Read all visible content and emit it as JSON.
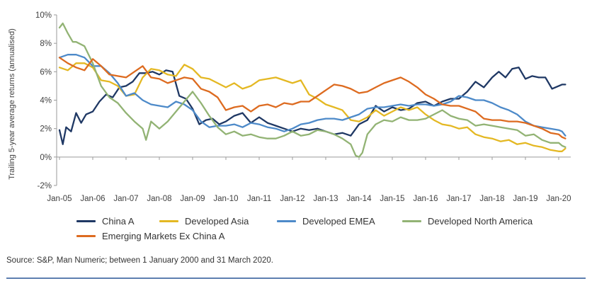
{
  "chart_data": {
    "type": "line",
    "ylabel": "Trailing 5-year average returns (annualised)",
    "xlabel": "",
    "ylim": [
      -2,
      10
    ],
    "yticks": [
      -2,
      0,
      2,
      4,
      6,
      8,
      10
    ],
    "ytick_labels": [
      "-2%",
      "0%",
      "2%",
      "4%",
      "6%",
      "8%",
      "10%"
    ],
    "xlim": [
      2005,
      2020.25
    ],
    "xticks": [
      2005,
      2006,
      2007,
      2008,
      2009,
      2010,
      2011,
      2012,
      2013,
      2014,
      2015,
      2016,
      2017,
      2018,
      2019,
      2020
    ],
    "xtick_labels": [
      "Jan-05",
      "Jan-06",
      "Jan-07",
      "Jan-08",
      "Jan-09",
      "Jan-10",
      "Jan-11",
      "Jan-12",
      "Jan-13",
      "Jan-14",
      "Jan-15",
      "Jan-16",
      "Jan-17",
      "Jan-18",
      "Jan-19",
      "Jan-20"
    ],
    "legend_position": "bottom",
    "series": [
      {
        "name": "China A",
        "color": "#1f3864",
        "x": [
          2005,
          2005.1,
          2005.2,
          2005.35,
          2005.5,
          2005.65,
          2005.8,
          2006,
          2006.2,
          2006.4,
          2006.6,
          2006.8,
          2007,
          2007.2,
          2007.4,
          2007.6,
          2007.8,
          2008,
          2008.2,
          2008.4,
          2008.6,
          2008.8,
          2009,
          2009.2,
          2009.4,
          2009.6,
          2009.8,
          2010,
          2010.25,
          2010.5,
          2010.75,
          2011,
          2011.25,
          2011.5,
          2011.75,
          2012,
          2012.25,
          2012.5,
          2012.75,
          2013,
          2013.25,
          2013.5,
          2013.75,
          2014,
          2014.25,
          2014.5,
          2014.75,
          2015,
          2015.25,
          2015.5,
          2015.75,
          2016,
          2016.25,
          2016.5,
          2016.75,
          2017,
          2017.25,
          2017.5,
          2017.75,
          2018,
          2018.2,
          2018.4,
          2018.6,
          2018.8,
          2019,
          2019.2,
          2019.4,
          2019.6,
          2019.8,
          2020,
          2020.1,
          2020.2
        ],
        "values": [
          1.9,
          0.9,
          2.1,
          1.8,
          3.1,
          2.4,
          3.0,
          3.2,
          3.9,
          4.4,
          4.2,
          4.9,
          5.0,
          5.3,
          5.9,
          5.9,
          6.0,
          5.8,
          6.1,
          6.0,
          4.3,
          4.1,
          3.4,
          2.3,
          2.6,
          2.7,
          2.3,
          2.5,
          2.9,
          3.1,
          2.4,
          2.8,
          2.4,
          2.2,
          2.0,
          1.8,
          2.0,
          1.9,
          2.0,
          1.8,
          1.6,
          1.7,
          1.5,
          2.3,
          2.6,
          3.6,
          3.2,
          3.5,
          3.3,
          3.4,
          3.8,
          3.9,
          3.6,
          3.9,
          4.1,
          4.1,
          4.6,
          5.3,
          4.9,
          5.6,
          6.0,
          5.6,
          6.2,
          6.3,
          5.5,
          5.7,
          5.6,
          5.6,
          4.8,
          5.0,
          5.1,
          5.1
        ]
      },
      {
        "name": "Developed Asia",
        "color": "#e4b823",
        "x": [
          2005,
          2005.25,
          2005.5,
          2005.75,
          2006,
          2006.25,
          2006.5,
          2006.75,
          2007,
          2007.25,
          2007.5,
          2007.75,
          2008,
          2008.25,
          2008.5,
          2008.75,
          2009,
          2009.25,
          2009.5,
          2009.75,
          2010,
          2010.25,
          2010.5,
          2010.75,
          2011,
          2011.25,
          2011.5,
          2011.75,
          2012,
          2012.25,
          2012.5,
          2012.75,
          2013,
          2013.25,
          2013.5,
          2013.75,
          2014,
          2014.25,
          2014.5,
          2014.75,
          2015,
          2015.25,
          2015.5,
          2015.75,
          2016,
          2016.25,
          2016.5,
          2016.75,
          2017,
          2017.25,
          2017.5,
          2017.75,
          2018,
          2018.25,
          2018.5,
          2018.75,
          2019,
          2019.25,
          2019.5,
          2019.75,
          2020,
          2020.1,
          2020.2
        ],
        "values": [
          6.3,
          6.1,
          6.6,
          6.6,
          6.3,
          5.4,
          5.3,
          5.0,
          4.3,
          4.4,
          5.6,
          6.2,
          6.1,
          5.8,
          5.7,
          6.5,
          6.2,
          5.6,
          5.5,
          5.2,
          4.9,
          5.2,
          4.8,
          5.0,
          5.4,
          5.5,
          5.6,
          5.4,
          5.2,
          5.4,
          4.4,
          4.1,
          3.7,
          3.5,
          3.3,
          2.6,
          2.5,
          2.8,
          3.3,
          2.9,
          3.2,
          3.5,
          3.3,
          3.5,
          3.0,
          2.6,
          2.3,
          2.2,
          2.0,
          2.1,
          1.6,
          1.4,
          1.3,
          1.1,
          1.2,
          0.9,
          1.0,
          0.8,
          0.7,
          0.5,
          0.4,
          0.4,
          0.6
        ]
      },
      {
        "name": "Developed EMEA",
        "color": "#4d8ac9",
        "x": [
          2005,
          2005.25,
          2005.5,
          2005.75,
          2006,
          2006.25,
          2006.5,
          2006.75,
          2007,
          2007.25,
          2007.5,
          2007.75,
          2008,
          2008.25,
          2008.5,
          2008.75,
          2009,
          2009.25,
          2009.5,
          2009.75,
          2010,
          2010.25,
          2010.5,
          2010.75,
          2011,
          2011.25,
          2011.5,
          2011.75,
          2012,
          2012.25,
          2012.5,
          2012.75,
          2013,
          2013.25,
          2013.5,
          2013.75,
          2014,
          2014.25,
          2014.5,
          2014.75,
          2015,
          2015.25,
          2015.5,
          2015.75,
          2016,
          2016.25,
          2016.5,
          2016.75,
          2017,
          2017.25,
          2017.5,
          2017.75,
          2018,
          2018.25,
          2018.5,
          2018.75,
          2019,
          2019.25,
          2019.5,
          2019.75,
          2020,
          2020.1,
          2020.2
        ],
        "values": [
          7.0,
          7.2,
          7.2,
          7.0,
          6.4,
          6.4,
          5.9,
          5.2,
          4.3,
          4.5,
          4.0,
          3.7,
          3.6,
          3.5,
          3.9,
          3.7,
          3.3,
          2.5,
          2.1,
          2.2,
          2.2,
          2.3,
          2.1,
          2.4,
          2.3,
          2.1,
          2.0,
          1.8,
          2.0,
          2.3,
          2.4,
          2.6,
          2.7,
          2.7,
          2.6,
          2.8,
          3.0,
          3.4,
          3.5,
          3.5,
          3.6,
          3.7,
          3.6,
          3.7,
          3.7,
          3.6,
          3.7,
          3.9,
          4.3,
          4.2,
          4.0,
          4.0,
          3.8,
          3.5,
          3.3,
          3.0,
          2.5,
          2.2,
          2.1,
          2.0,
          1.9,
          1.8,
          1.5
        ]
      },
      {
        "name": "Developed North America",
        "color": "#92b374",
        "x": [
          2005,
          2005.1,
          2005.25,
          2005.4,
          2005.5,
          2005.75,
          2006,
          2006.25,
          2006.5,
          2006.75,
          2007,
          2007.25,
          2007.5,
          2007.6,
          2007.75,
          2008,
          2008.25,
          2008.5,
          2008.75,
          2009,
          2009.25,
          2009.5,
          2009.75,
          2010,
          2010.25,
          2010.5,
          2010.75,
          2011,
          2011.25,
          2011.5,
          2011.75,
          2012,
          2012.25,
          2012.5,
          2012.75,
          2013,
          2013.25,
          2013.5,
          2013.75,
          2013.9,
          2014,
          2014.1,
          2014.25,
          2014.5,
          2014.75,
          2015,
          2015.25,
          2015.5,
          2015.75,
          2016,
          2016.25,
          2016.5,
          2016.75,
          2017,
          2017.25,
          2017.5,
          2017.75,
          2018,
          2018.25,
          2018.5,
          2018.75,
          2019,
          2019.25,
          2019.5,
          2019.75,
          2020,
          2020.1,
          2020.2
        ],
        "values": [
          9.1,
          9.4,
          8.7,
          8.1,
          8.1,
          7.8,
          6.6,
          5.0,
          4.2,
          3.8,
          3.1,
          2.5,
          2.0,
          1.2,
          2.5,
          2.0,
          2.5,
          3.2,
          3.9,
          4.6,
          3.8,
          2.9,
          2.1,
          1.6,
          1.8,
          1.5,
          1.6,
          1.4,
          1.3,
          1.3,
          1.5,
          1.8,
          1.5,
          1.6,
          1.9,
          1.8,
          1.6,
          1.3,
          0.9,
          0.1,
          0.0,
          0.3,
          1.6,
          2.3,
          2.6,
          2.5,
          2.8,
          2.6,
          2.6,
          2.7,
          3.0,
          3.3,
          2.9,
          2.7,
          2.6,
          2.2,
          2.3,
          2.2,
          2.1,
          2.0,
          1.9,
          1.5,
          1.6,
          1.2,
          1.0,
          1.0,
          0.8,
          0.7
        ]
      },
      {
        "name": "Emerging Markets Ex China A",
        "color": "#dd6b20",
        "x": [
          2005,
          2005.25,
          2005.5,
          2005.75,
          2006,
          2006.25,
          2006.5,
          2006.75,
          2007,
          2007.25,
          2007.5,
          2007.75,
          2008,
          2008.25,
          2008.5,
          2008.75,
          2009,
          2009.25,
          2009.5,
          2009.75,
          2010,
          2010.25,
          2010.5,
          2010.75,
          2011,
          2011.25,
          2011.5,
          2011.75,
          2012,
          2012.25,
          2012.5,
          2012.75,
          2013,
          2013.25,
          2013.5,
          2013.75,
          2014,
          2014.25,
          2014.5,
          2014.75,
          2015,
          2015.25,
          2015.5,
          2015.75,
          2016,
          2016.25,
          2016.5,
          2016.75,
          2017,
          2017.25,
          2017.5,
          2017.75,
          2018,
          2018.25,
          2018.5,
          2018.75,
          2019,
          2019.25,
          2019.5,
          2019.75,
          2020,
          2020.1,
          2020.2
        ],
        "values": [
          7.0,
          6.6,
          6.3,
          6.1,
          6.9,
          6.4,
          5.8,
          5.7,
          5.6,
          6.0,
          6.4,
          5.6,
          5.5,
          5.2,
          5.4,
          5.6,
          5.5,
          4.8,
          4.6,
          4.2,
          3.3,
          3.5,
          3.6,
          3.2,
          3.6,
          3.7,
          3.5,
          3.8,
          3.7,
          3.9,
          3.9,
          4.3,
          4.7,
          5.1,
          5.0,
          4.8,
          4.5,
          4.6,
          4.9,
          5.2,
          5.4,
          5.6,
          5.3,
          4.9,
          4.4,
          4.1,
          3.7,
          3.6,
          3.6,
          3.4,
          3.2,
          2.7,
          2.6,
          2.6,
          2.5,
          2.5,
          2.4,
          2.2,
          2.0,
          1.7,
          1.6,
          1.4,
          1.3
        ]
      }
    ]
  },
  "source": "Source: S&P, Man Numeric; between 1 January 2000 and 31 March 2020."
}
